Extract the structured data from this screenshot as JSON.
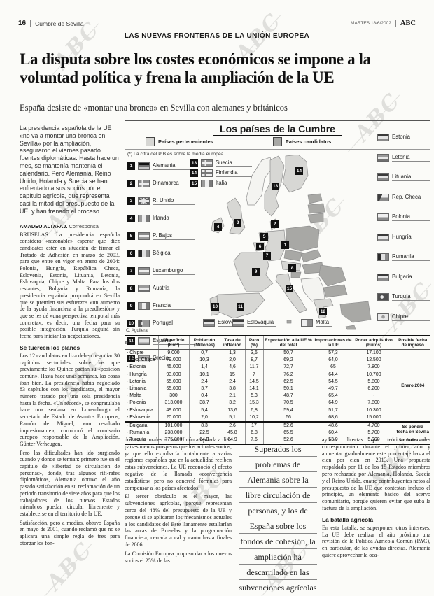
{
  "hdr": {
    "page_number": "16",
    "section": "Cumbre de Sevilla",
    "date": "MARTES 18/6/2002",
    "brand": "ABC",
    "kicker": "LAS NUEVAS FRONTERAS DE LA UNIÓN EUROPEA"
  },
  "decor": {
    "watermark": "ABC"
  },
  "article": {
    "headline": "La disputa sobre los costes económicos se impone a la voluntad política y frena la ampliación de la UE",
    "subhead": "España desiste de «montar una bronca» en Sevilla con alemanes y británicos",
    "lead": "La presidencia española de la UE «no va a montar una bronca en Sevilla» por la ampliación, aseguraron el viernes pasado fuentes diplomáticas. Hasta hace un mes, se mantenía mantenía el calendario. Pero Alemania, Reino Unido, Holanda y Suecia se han enfrentado a sus socios por el capítulo agrícola, que representa casi la mitad del presupuesto de la UE, y han frenado el proceso.",
    "byline_name": "AMADEU ALTAFAJ.",
    "byline_role": "Corresponsal",
    "col1_p1": "BRUSELAS. La presidencia española considera «razonable» esperar que diez candidatos estén en situación de firmar el Tratado de Adhesión en marzo de 2003, para que entre en vigor en enero de 2004: Polonia, Hungría, República Checa, Eslovenia, Estonia, Lituania, Letonia, Eslovaquia, Chipre y Malta. Para los dos restantes, Bulgaria y Rumanía, la presidencia española propondrá en Sevilla que se premien sus esfuerzos «un aumento de la ayuda financiera a la preadhesión» y que se les dé «una perspectiva temporal más concreta», es decir, una fecha para su posible integración. Turquía seguirá sin fecha para iniciar las negociaciones.",
    "col1_h1": "Se tuercen los planes",
    "col1_p2": "Los 12 candidatos en liza deben negociar 30 capítulos sectoriales, sobre los que previamente los Quince pactan su «posición común». Hasta hace unas semanas, las cosas iban bien. La presidencia había negociado 83 capítulos con los candidatos, el mayor número tratado por una sola presidencia hasta la fecha. «Un récord», se congratulaba hace una semana en Luxemburgo el secretario de Estado de Asuntos Europeos, Ramón de Miguel; «un resultado impresionante», corroboró el comisario europeo responsable de la Ampliación, Günter Verheugen.",
    "col1_p3": "Pero las dificultades han ido surgiendo cuando y donde se temían: primero fue en el capítulo de «libertad de circulación de personas», donde, tras algunos rifi-rafes diplomáticos, Alemania obtuvo el año pasado satisfacción en su reclamación de un periodo transitorio de siete años para que los trabajadores de los nuevos Estados miembros puedan circular libremente y establecerse en el territorio de la UE.",
    "col1_p4": "Satisfacción, pero a medias, obtuvo España en mayo de 2001, cuando reclamó que no se aplicara una simple regla de tres para otorgar los fon-",
    "col2_p1": "dos estructurales en una Unión ampliada a diez países menos prósperos que los actuales socios, ya que ello expulsaría brutalmente a varias regiones españolas que en la actualidad reciben estas subvenciones. La UE reconoció el efecto negativo de la llamada «convergencia estadística» pero no concretó fórmulas para compensar a los países afectados.",
    "col2_p2": "El tercer obstáculo es el mayor, las subvenciones agrícolas, porque representan cerca del 48% del presupuesto de la UE y porque si se aplicaran los mecanismos actuales a los candidatos del Este llanamente estallarían las arcas de Bruselas y la programación financiera, cerrada a cal y canto hasta finales de 2006.",
    "col2_p3": "La Comisión Europea propuso dar a los nuevos socios el 25% de las",
    "pull_quote_lines": [
      "Superados los",
      "problemas de",
      "Alemania sobre la",
      "libre circulación de",
      "personas, y los de",
      "España sobre los",
      "fondos de cohesión, la",
      "ampliación ha",
      "descarrilado en las",
      "subvenciones agrícolas"
    ],
    "col3_p1": "ayudas directas que teóricamente les corresponderían durante el primer año y aumentar gradualmente este porcentaje hasta el cien por cien en 2013. Una propuesta respaldada por 11 de los 15 Estados miembros pero rechazada por Alemania, Holanda, Suecia y el Reino Unido, cuatro contribuyentes netos al presupuesto de la UE que contestan incluso el principio, un elemento básico del acervo comunitario, porque quieren evitar que suba la factura de la ampliación.",
    "col3_h1": "La batalla agrícola",
    "col3_p2": "En esta batalla, se superponen otros intereses. La UE debe realizar el año próximo una revisión de la Política Agrícola Común (PAC), en particular, de las ayudas directas. Alemania quiere aprovechar la oca-"
  },
  "info": {
    "title": "Los países de la Cumbre",
    "legend": [
      {
        "label": "Países pertenecientes",
        "color": "#d7d7d4"
      },
      {
        "label": "Países candidatos",
        "color": "#a8a8a5"
      }
    ],
    "note": "(*) La cifra del PIB es sobre la media europea",
    "members": [
      {
        "num": "1",
        "name": "Alemania"
      },
      {
        "num": "2",
        "name": "Dinamarca"
      },
      {
        "num": "3",
        "name": "R. Unido"
      },
      {
        "num": "4",
        "name": "Irlanda"
      },
      {
        "num": "5",
        "name": "P. Bajos"
      },
      {
        "num": "6",
        "name": "Bélgica"
      },
      {
        "num": "7",
        "name": "Luxemburgo"
      },
      {
        "num": "8",
        "name": "Austria"
      },
      {
        "num": "9",
        "name": "Francia"
      },
      {
        "num": "10",
        "name": "Portugal"
      },
      {
        "num": "11",
        "name": "España"
      },
      {
        "num": "12",
        "name": "Grecia"
      },
      {
        "num": "13",
        "name": "Suecia"
      },
      {
        "num": "14",
        "name": "Finlandia"
      },
      {
        "num": "15",
        "name": "Italia"
      }
    ],
    "candidates": [
      "Estonia",
      "Letonia",
      "Lituania",
      "Rep. Checa",
      "Polonia",
      "Hungría",
      "Rumanía",
      "Bulgaria",
      "Turquía",
      "Chipre"
    ],
    "bottom_labels": [
      "Eslovenia",
      "Eslovaquia",
      "Malta"
    ],
    "credit": "C. Aguilera",
    "table": {
      "columns": [
        "País",
        "Superficie (Km²)",
        "Población (Millones)",
        "Tasa de inflación",
        "Paro (%)",
        "Exportación a la UE % del total",
        "Importaciones de la UE",
        "Poder adquisitivo (Euros)",
        "Posible fecha de ingreso"
      ],
      "rows": [
        [
          "Chipre",
          "9.000",
          "0,7",
          "1,3",
          "3,6",
          "50,7",
          "57,3",
          "17.100"
        ],
        [
          "Rep. Checa",
          "79.000",
          "10,3",
          "2,0",
          "8,7",
          "69,2",
          "64,0",
          "12.500"
        ],
        [
          "Estonia",
          "45.000",
          "1,4",
          "4,6",
          "11,7",
          "72,7",
          "65",
          "7.800"
        ],
        [
          "Hungría",
          "93.000",
          "10,1",
          "15",
          "7",
          "76,2",
          "64,4",
          "10.700"
        ],
        [
          "Letonia",
          "65.000",
          "2,4",
          "2,4",
          "14,5",
          "62,5",
          "54,5",
          "5.800"
        ],
        [
          "Lituania",
          "65.000",
          "3,7",
          "3,8",
          "14,1",
          "50,1",
          "49,7",
          "6.200"
        ],
        [
          "Malta",
          "300",
          "0,4",
          "2,1",
          "5,3",
          "48,7",
          "65,4",
          "-"
        ],
        [
          "Polonia",
          "313.000",
          "38,7",
          "3,2",
          "15,3",
          "70,5",
          "64,9",
          "7.800"
        ],
        [
          "Eslovaquia",
          "49.000",
          "5,4",
          "13,6",
          "6,8",
          "59,4",
          "51,7",
          "10.300"
        ],
        [
          "Eslovenia",
          "20.000",
          "2,0",
          "5,1",
          "10,2",
          "66",
          "68,6",
          "15.000"
        ],
        [
          "Bulgaria",
          "101.000",
          "8,3",
          "2,6",
          "17",
          "52,6",
          "48,6",
          "4.700"
        ],
        [
          "Rumanía",
          "238.000",
          "22,5",
          "45,8",
          "6,8",
          "65,5",
          "60,4",
          "5.700"
        ],
        [
          "Turquía",
          "775.000",
          "64,3",
          "64,9",
          "7,6",
          "52,6",
          "53,9",
          "5.900"
        ]
      ],
      "fecha_notes": [
        {
          "text": "Enero 2004",
          "row_start": 0,
          "span": 10
        },
        {
          "text": "Se pondrá fecha en Sevilla",
          "row_start": 10,
          "span": 2
        },
        {
          "text": "Sin fecha aún",
          "row_start": 12,
          "span": 1
        }
      ],
      "group_break_row": 10
    }
  }
}
